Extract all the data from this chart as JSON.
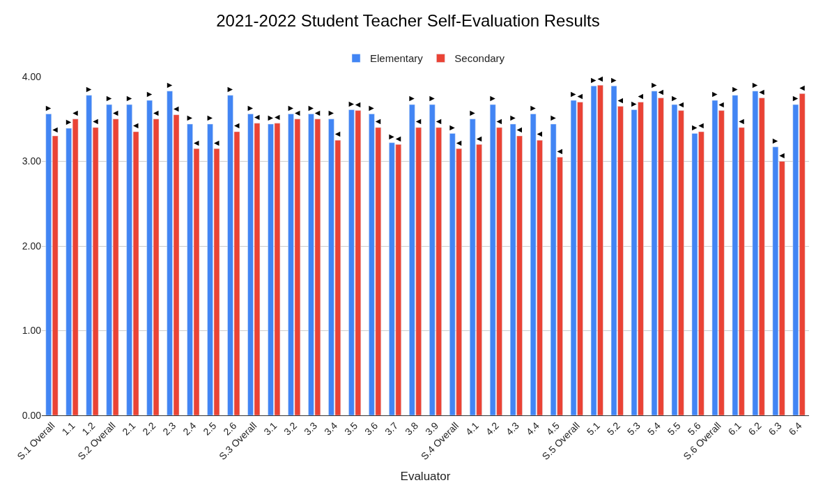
{
  "chart_data": {
    "type": "bar",
    "title": "2021-2022 Student Teacher Self-Evaluation Results",
    "xlabel": "Evaluator",
    "categories": [
      "S.1 Overall",
      "1.1",
      "1.2",
      "S.2 Overall",
      "2.1",
      "2.2",
      "2.3",
      "2.4",
      "2.5",
      "2.6",
      "S.3 Overall",
      "3.1",
      "3.2",
      "3.3",
      "3.4",
      "3.5",
      "3.6",
      "3.7",
      "3.8",
      "3.9",
      "S.4 Overall",
      "4.1",
      "4.2",
      "4.3",
      "4.4",
      "4.5",
      "S.5 Overall",
      "5.1",
      "5.2",
      "5.3",
      "5.4",
      "5.5",
      "5.6",
      "S.6 Overall",
      "6.1",
      "6.2",
      "6.3",
      "6.4"
    ],
    "series": [
      {
        "name": "Elementary",
        "color": "#4285f4",
        "values": [
          3.56,
          3.39,
          3.78,
          3.67,
          3.67,
          3.72,
          3.83,
          3.44,
          3.44,
          3.78,
          3.56,
          3.44,
          3.56,
          3.56,
          3.5,
          3.61,
          3.56,
          3.22,
          3.67,
          3.67,
          3.33,
          3.5,
          3.67,
          3.44,
          3.56,
          3.44,
          3.72,
          3.89,
          3.89,
          3.61,
          3.83,
          3.67,
          3.33,
          3.72,
          3.78,
          3.83,
          3.17,
          3.67
        ],
        "value_labels": [
          "▶",
          "▶",
          "▶",
          "▶",
          "▶",
          "▶",
          "▶",
          "▶",
          "▶",
          "▶",
          "▶",
          "▶",
          "▶",
          "▶",
          "▶",
          "▶",
          "▶",
          "▶",
          "▶",
          "▶",
          "▶",
          "▶",
          "▶",
          "▶",
          "▶",
          "▶",
          "▶",
          "▶",
          "▶",
          "▶",
          "▶",
          "▶",
          "▶",
          "▶",
          "▶",
          "▶",
          "▶",
          "▶"
        ]
      },
      {
        "name": "Secondary",
        "color": "#ea4335",
        "values": [
          3.3,
          3.5,
          3.4,
          3.5,
          3.35,
          3.5,
          3.55,
          3.15,
          3.15,
          3.35,
          3.45,
          3.45,
          3.5,
          3.5,
          3.25,
          3.6,
          3.4,
          3.2,
          3.4,
          3.4,
          3.15,
          3.2,
          3.4,
          3.3,
          3.25,
          3.05,
          3.7,
          3.9,
          3.65,
          3.7,
          3.75,
          3.6,
          3.35,
          3.6,
          3.4,
          3.75,
          3.0,
          3.8
        ],
        "value_labels": [
          "◀",
          "◀",
          "◀",
          "◀",
          "◀",
          "◀",
          "◀",
          "◀",
          "◀",
          "◀",
          "◀",
          "◀",
          "◀",
          "◀",
          "◀",
          "◀",
          "◀",
          "◀",
          "◀",
          "◀",
          "◀",
          "◀",
          "◀",
          "◀",
          "◀",
          "◀",
          "◀",
          "◀",
          "◀",
          "◀",
          "◀",
          "◀",
          "◀",
          "◀",
          "◀",
          "◀",
          "◀",
          "◀"
        ]
      }
    ],
    "ylim": [
      0,
      4
    ],
    "yticks": [
      {
        "value": 0,
        "label": "0.00"
      },
      {
        "value": 1,
        "label": "1.00"
      },
      {
        "value": 2,
        "label": "2.00"
      },
      {
        "value": 3,
        "label": "3.00"
      },
      {
        "value": 4,
        "label": "4.00"
      }
    ],
    "grid": "y",
    "legend": "top"
  }
}
